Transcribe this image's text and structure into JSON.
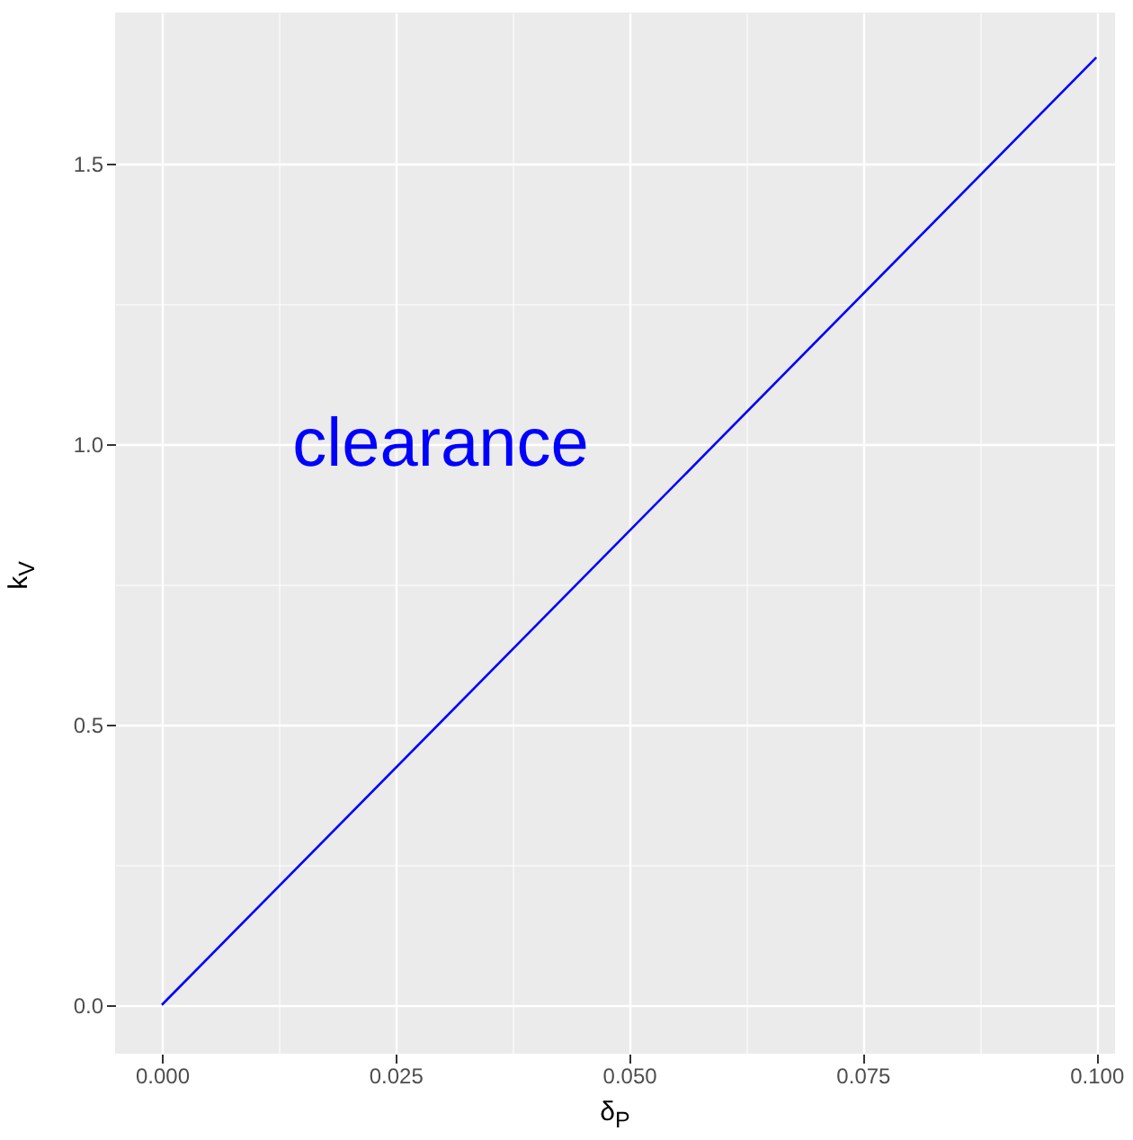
{
  "chart_data": {
    "type": "line",
    "xlabel": "δ$_{P}$",
    "ylabel": "k$_{V}$",
    "x": [
      0,
      0.1
    ],
    "series": [
      {
        "color": "#0000ff",
        "values": [
          0,
          1.69
        ]
      }
    ],
    "xlim": [
      -0.005,
      0.102
    ],
    "ylim": [
      -0.087,
      1.77
    ],
    "xticks": [
      {
        "value": 0,
        "label": "0.000"
      },
      {
        "value": 0.025,
        "label": "0.025"
      },
      {
        "value": 0.05,
        "label": "0.050"
      },
      {
        "value": 0.075,
        "label": "0.075"
      },
      {
        "value": 0.1,
        "label": "0.100"
      }
    ],
    "yticks": [
      {
        "value": 0,
        "label": "0.0"
      },
      {
        "value": 0.5,
        "label": "0.5"
      },
      {
        "value": 1,
        "label": "1.0"
      },
      {
        "value": 1.5,
        "label": "1.5"
      }
    ],
    "grid": true,
    "annotations": [
      "clearance"
    ]
  }
}
